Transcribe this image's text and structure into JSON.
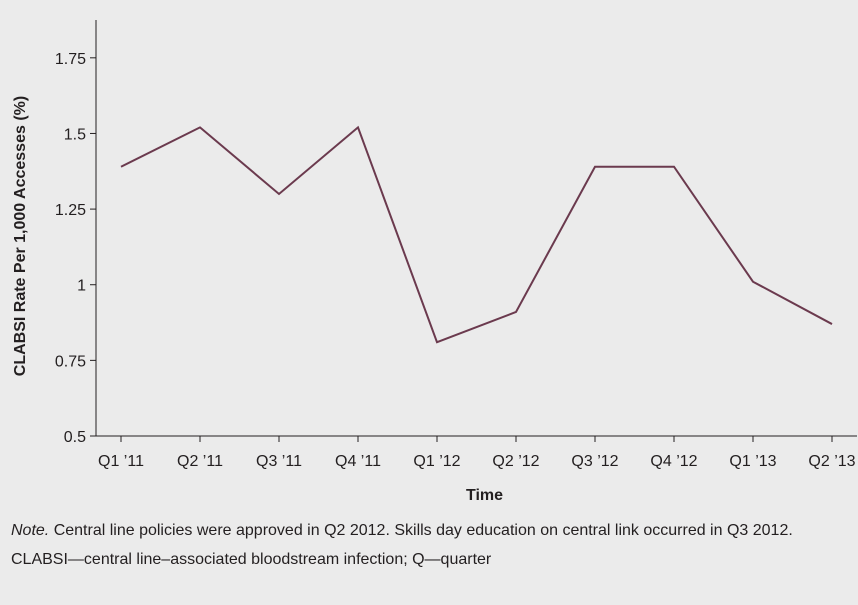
{
  "chart_data": {
    "type": "line",
    "title": "",
    "xlabel": "Time",
    "ylabel": "CLABSI Rate Per 1,000 Accesses (%)",
    "categories": [
      "Q1 ’11",
      "Q2 ’11",
      "Q3 ’11",
      "Q4 ’11",
      "Q1 ’12",
      "Q2 ’12",
      "Q3 ’12",
      "Q4 ’12",
      "Q1 ’13",
      "Q2 ’13"
    ],
    "series": [
      {
        "values": [
          1.39,
          1.52,
          1.3,
          1.52,
          0.81,
          0.91,
          1.39,
          1.39,
          1.01,
          0.87
        ]
      }
    ],
    "ylim": [
      0.5,
      1.875
    ],
    "yticks": [
      0.5,
      0.75,
      1,
      1.25,
      1.5,
      1.75
    ],
    "ytick_labels": [
      "0.5",
      "0.75",
      "1",
      "1.25",
      "1.5",
      "1.75"
    ],
    "grid": false,
    "line_color": "#6b3a4e"
  },
  "note": {
    "label": "Note.",
    "text": " Central line policies were approved in Q2 2012. Skills day education on central link occurred in Q3 2012.",
    "abbreviations": "CLABSI—central line–associated bloodstream infection; Q—quarter"
  }
}
